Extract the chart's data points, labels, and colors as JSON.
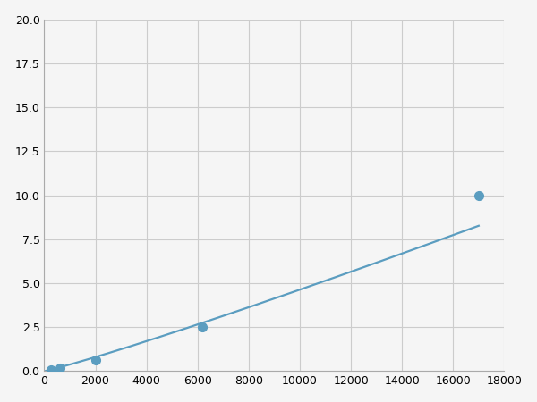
{
  "x_points": [
    250,
    600,
    2000,
    6200,
    17000
  ],
  "y_points": [
    0.1,
    0.2,
    0.65,
    2.5,
    10.0
  ],
  "line_color": "#5b9dc0",
  "marker_color": "#5b9dc0",
  "marker_size": 7,
  "linewidth": 1.6,
  "xlim": [
    0,
    18000
  ],
  "ylim": [
    0,
    20.0
  ],
  "xticks": [
    0,
    2000,
    4000,
    6000,
    8000,
    10000,
    12000,
    14000,
    16000,
    18000
  ],
  "yticks": [
    0.0,
    2.5,
    5.0,
    7.5,
    10.0,
    12.5,
    15.0,
    17.5,
    20.0
  ],
  "grid_color": "#cccccc",
  "background_color": "#f5f5f5",
  "figsize": [
    6.0,
    4.5
  ],
  "dpi": 100
}
